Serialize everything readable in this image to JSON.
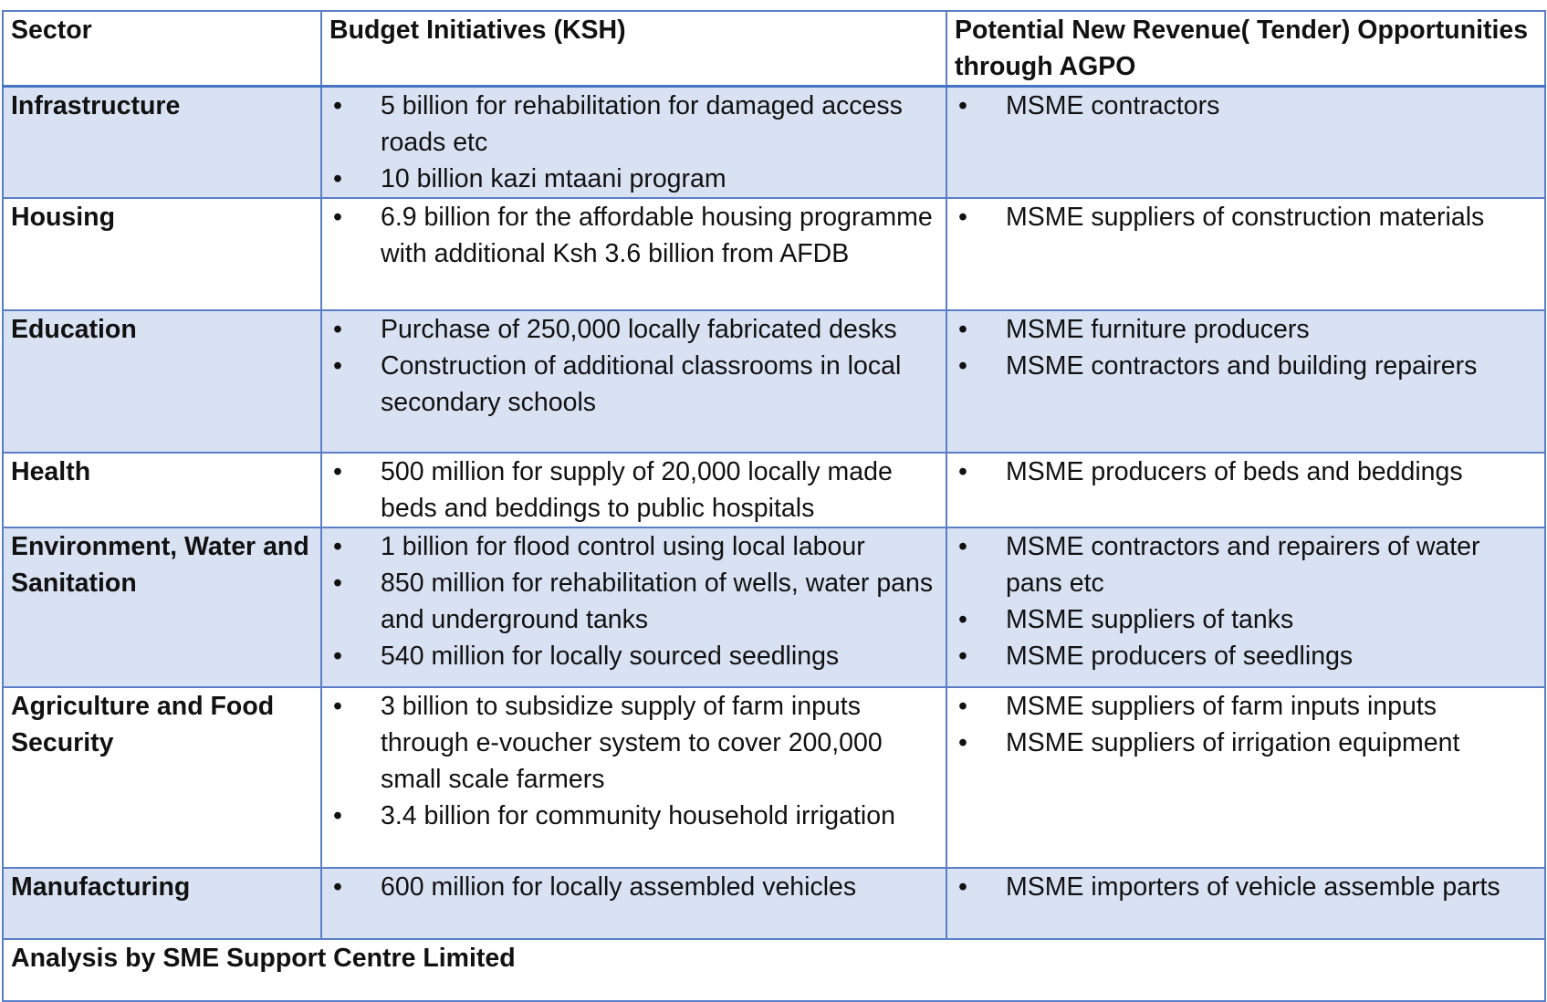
{
  "header": {
    "sector": "Sector",
    "budget": "Budget Initiatives (KSH)",
    "revenue": "Potential New Revenue( Tender) Opportunities through AGPO"
  },
  "rows": [
    {
      "sector": "Infrastructure",
      "budget": [
        "5 billion for rehabilitation for damaged access roads etc",
        "10 billion kazi mtaani program"
      ],
      "revenue": [
        " MSME contractors"
      ]
    },
    {
      "sector": "Housing",
      "budget": [
        " 6.9 billion for the affordable housing programme with additional Ksh 3.6 billion from  AFDB"
      ],
      "revenue": [
        "MSME suppliers of construction materials"
      ]
    },
    {
      "sector": "Education",
      "budget": [
        "Purchase of 250,000 locally fabricated desks",
        "Construction of additional classrooms in local secondary schools"
      ],
      "revenue": [
        "MSME furniture producers",
        "MSME contractors and building repairers"
      ]
    },
    {
      "sector": "Health",
      "budget": [
        "500 million for supply of 20,000 locally made beds and beddings to public hospitals"
      ],
      "revenue": [
        "MSME producers of beds and beddings"
      ]
    },
    {
      "sector": "Environment, Water and Sanitation",
      "budget": [
        " 1 billion for flood control using local labour",
        "850 million for rehabilitation of wells, water pans and underground tanks",
        "540 million for locally sourced seedlings"
      ],
      "revenue": [
        "MSME contractors and repairers of water pans etc",
        "MSME suppliers of tanks",
        "MSME producers of seedlings"
      ]
    },
    {
      "sector": "Agriculture and Food Security",
      "budget": [
        "3 billion to subsidize supply of farm inputs through e-voucher system to cover 200,000 small scale farmers",
        "3.4 billion for community household irrigation"
      ],
      "revenue": [
        "MSME suppliers of farm inputs inputs",
        "MSME suppliers of irrigation equipment"
      ]
    },
    {
      "sector": "Manufacturing",
      "budget": [
        "600 million for locally assembled vehicles"
      ],
      "revenue": [
        "MSME importers of vehicle assemble parts"
      ]
    }
  ],
  "footer": "Analysis by SME Support Centre Limited",
  "colors": {
    "shade": "#d9e2f3",
    "border": "#5b7fc7"
  }
}
